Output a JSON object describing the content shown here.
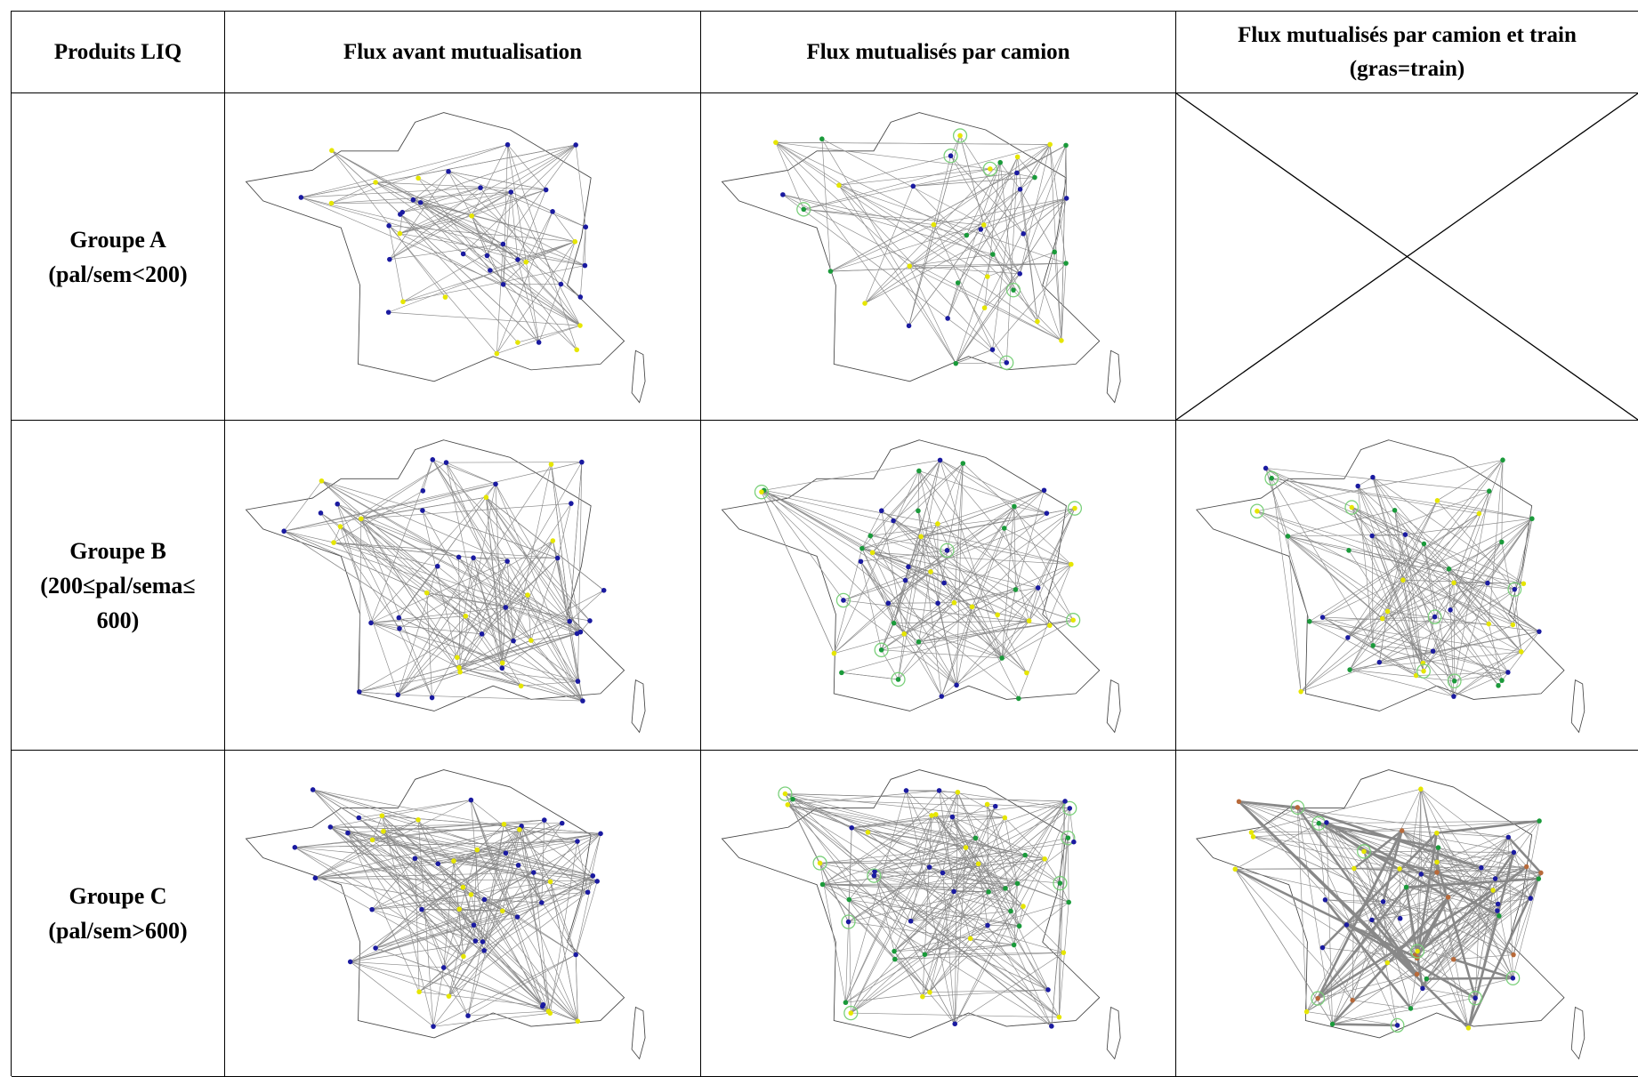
{
  "header": [
    "Produits LIQ",
    "Flux avant mutualisation",
    "Flux mutualisés par camion",
    "Flux mutualisés par camion et train (gras=train)"
  ],
  "rows": [
    {
      "name": "Groupe A",
      "condition": "(pal/sem<200)"
    },
    {
      "name": "Groupe B",
      "condition": "(200≤pal/sema≤ 600)"
    },
    {
      "name": "Groupe C",
      "condition": "(pal/sem>600)"
    }
  ]
}
